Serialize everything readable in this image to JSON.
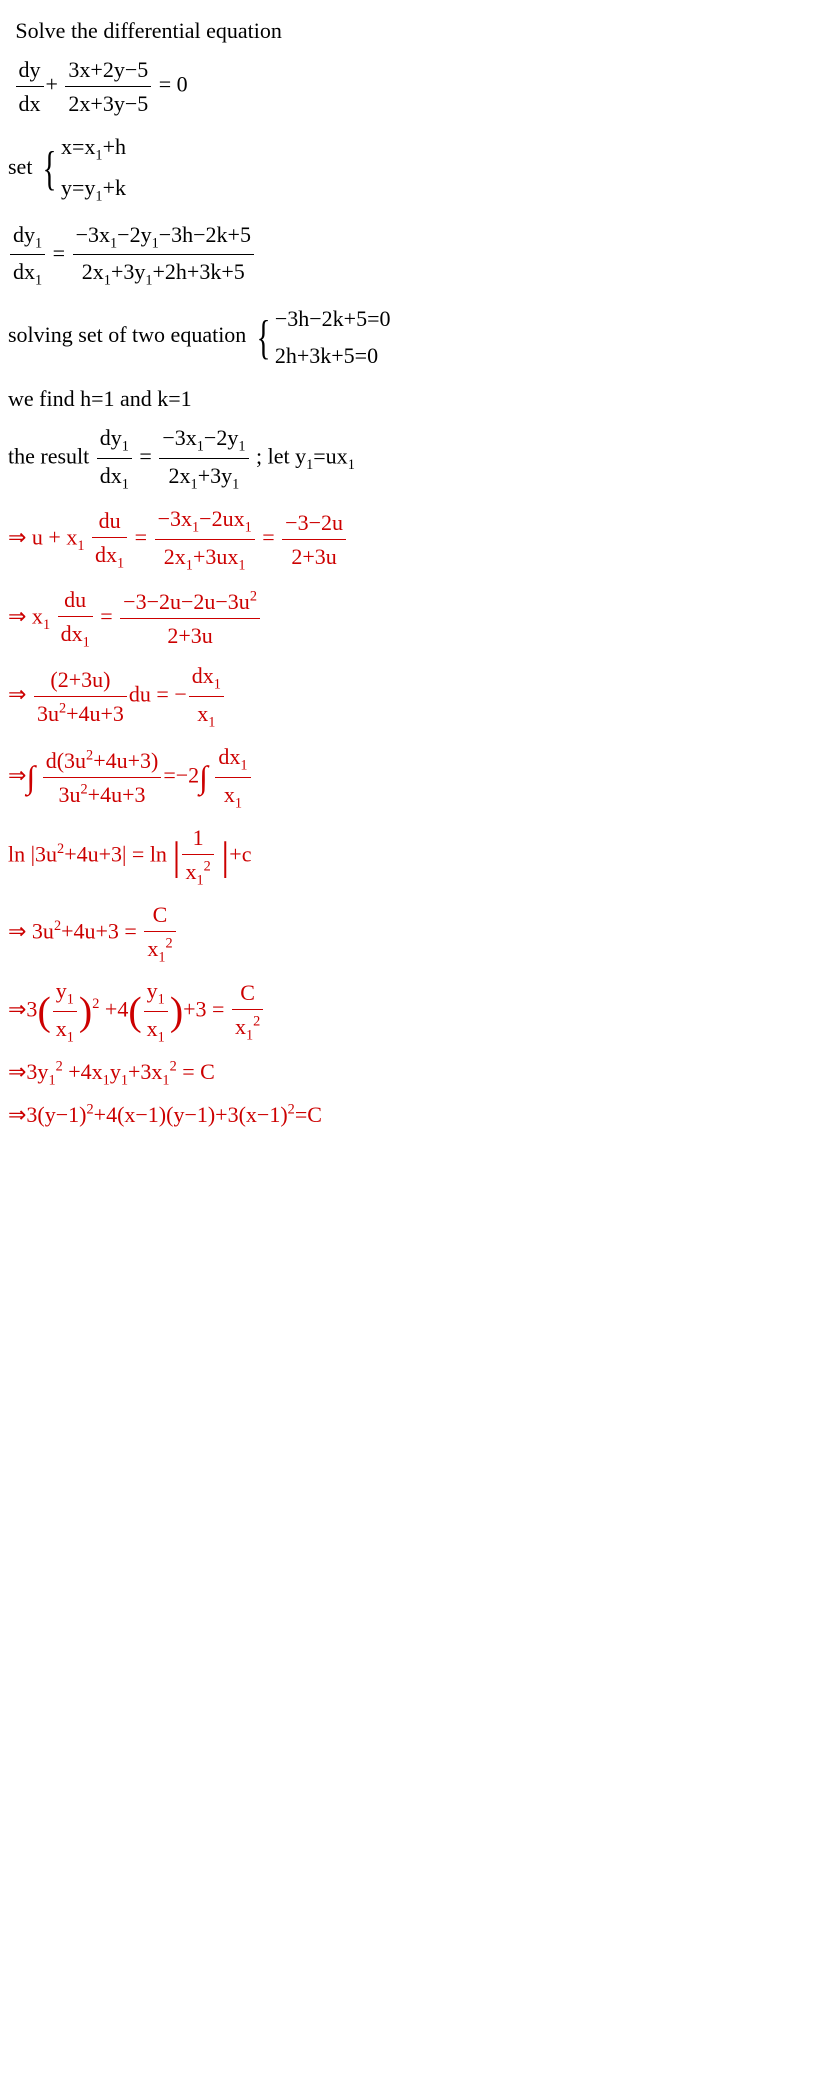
{
  "l1": " Solve the differential equation",
  "l2_a": "dy",
  "l2_b": "dx",
  "l2_c": "3x+2y−5",
  "l2_d": "2x+3y−5",
  "l2_e": " = 0",
  "l3_a": "set ",
  "l3_b": "x=x",
  "l3_c": "+h",
  "l3_d": "y=y",
  "l3_e": "+k",
  "l4_a": "dy",
  "l4_b": "dx",
  "l4_c": " = ",
  "l4_d": "−3x",
  "l4_e": "−2y",
  "l4_f": "−3h−2k+5",
  "l4_g": "2x",
  "l4_h": "+3y",
  "l4_i": "+2h+3k+5",
  "l5_a": "solving set of two equation ",
  "l5_b": "−3h−2k+5=0",
  "l5_c": "2h+3k+5=0",
  "l6": "we find h=1 and k=1",
  "l7_a": "the result ",
  "l7_b": "dy",
  "l7_c": "dx",
  "l7_d": " = ",
  "l7_e": "−3x",
  "l7_f": "−2y",
  "l7_g": "2x",
  "l7_h": "+3y",
  "l7_i": " ; let y",
  "l7_j": "=ux",
  "l8_a": "⇒ u + x",
  "l8_b": "du",
  "l8_c": "dx",
  "l8_d": " = ",
  "l8_e": "−3x",
  "l8_f": "−2ux",
  "l8_g": "2x",
  "l8_h": "+3ux",
  "l8_i": " = ",
  "l8_j": "−3−2u",
  "l8_k": "2+3u",
  "l9_a": "⇒ x",
  "l9_b": "du",
  "l9_c": "dx",
  "l9_d": " = ",
  "l9_e": "−3−2u−2u−3u",
  "l9_f": "2+3u",
  "l10_a": "⇒ ",
  "l10_b": "(2+3u)",
  "l10_c": "3u",
  "l10_d": "+4u+3",
  "l10_e": "du = −",
  "l10_f": "dx",
  "l10_g": "x",
  "l11_a": "⇒",
  "l11_b": "d(3u",
  "l11_c": "+4u+3)",
  "l11_d": "3u",
  "l11_e": "+4u+3",
  "l11_f": "=−2",
  "l11_g": "dx",
  "l11_h": "x",
  "l12_a": "ln |3u",
  "l12_b": "+4u+3| = ln ",
  "l12_c": "1",
  "l12_d": "x",
  "l12_e": "+c",
  "l13_a": "⇒ 3u",
  "l13_b": "+4u+3 = ",
  "l13_c": "C",
  "l13_d": "x",
  "l14_a": "⇒3",
  "l14_b": "y",
  "l14_c": "x",
  "l14_d": " +4",
  "l14_e": "y",
  "l14_f": "x",
  "l14_g": "+3 = ",
  "l14_h": "C",
  "l14_i": "x",
  "l15_a": "⇒3y",
  "l15_b": " +4x",
  "l15_c": "y",
  "l15_d": "+3x",
  "l15_e": " = C",
  "l16_a": "⇒3(y−1)",
  "l16_b": "+4(x−1)(y−1)+3(x−1)",
  "l16_c": "=C",
  "sub1": "1",
  "sup2": "2",
  "plus": "+ "
}
